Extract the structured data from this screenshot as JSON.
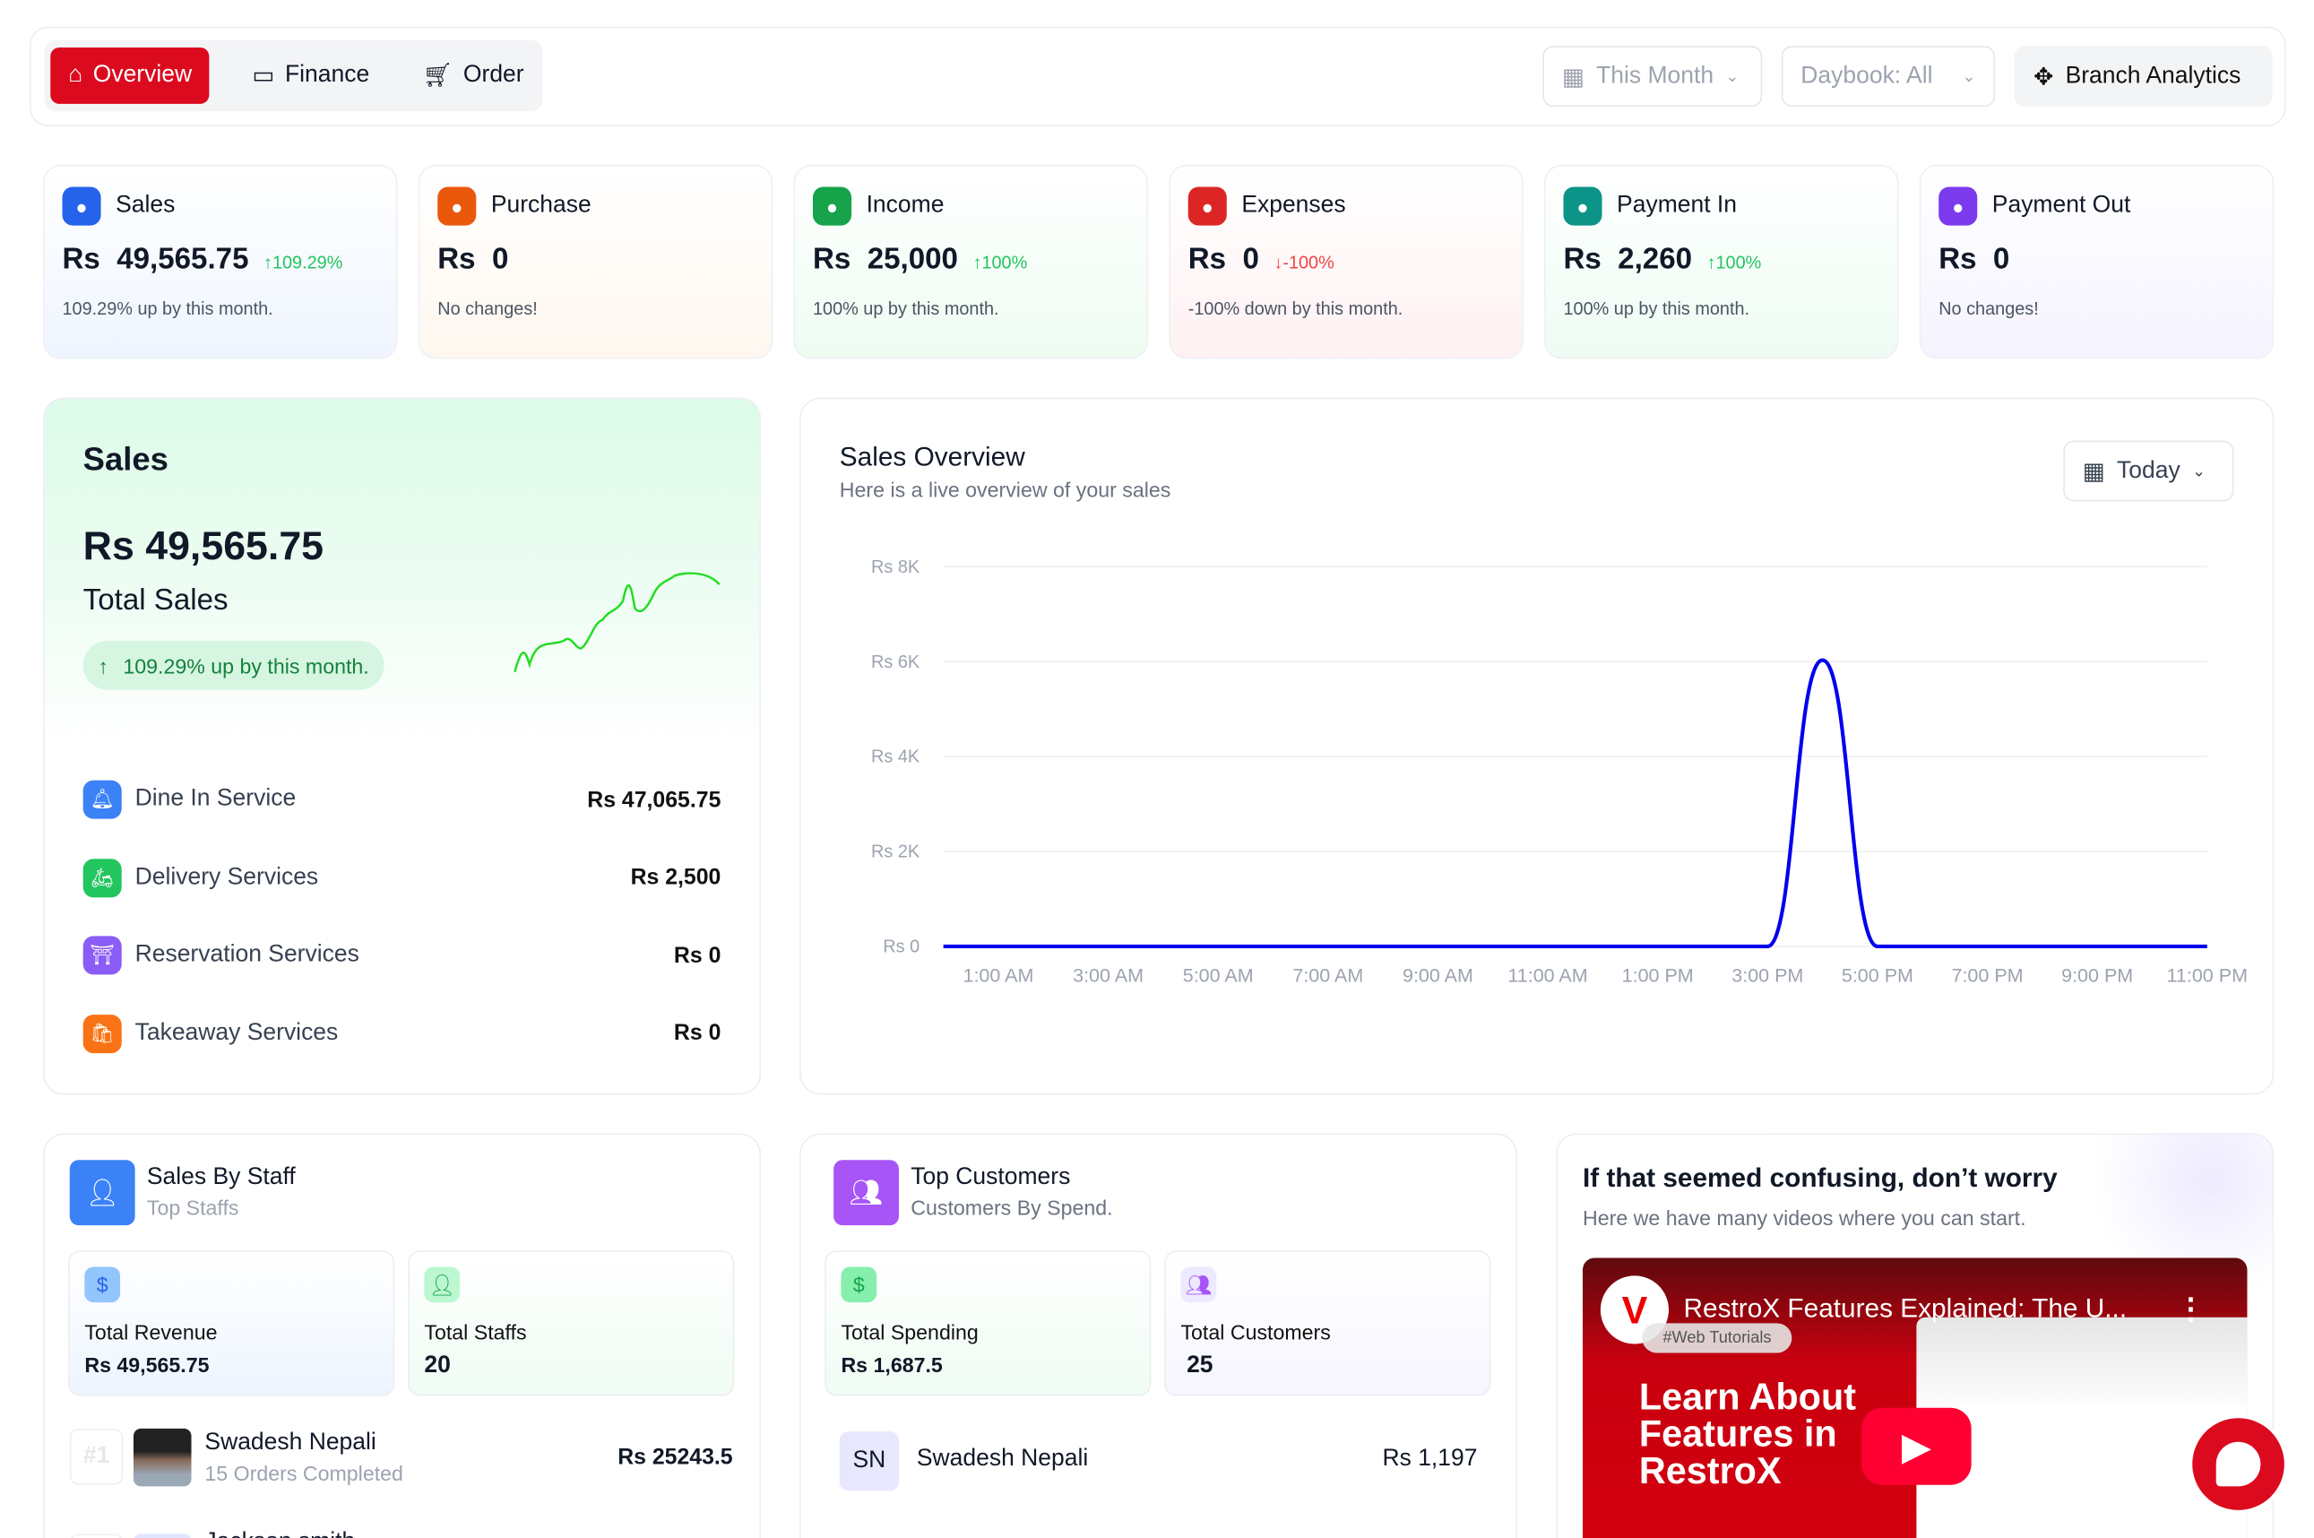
{
  "nav": {
    "tabs": [
      {
        "label": "Overview",
        "icon": "home-icon",
        "active": true
      },
      {
        "label": "Finance",
        "icon": "wallet-icon"
      },
      {
        "label": "Order",
        "icon": "cart-icon"
      }
    ],
    "period": "This Month",
    "daybook": "Daybook: All",
    "branch_analytics": "Branch Analytics"
  },
  "stats": [
    {
      "label": "Sales",
      "value": "Rs  49,565.75",
      "pct": "109.29%",
      "dir": "up",
      "note": "109.29% up by this month.",
      "color": "#2563eb",
      "bg": "#eff5ff"
    },
    {
      "label": "Purchase",
      "value": "Rs  0",
      "pct": "",
      "dir": "",
      "note": "No changes!",
      "color": "#ea580c",
      "bg": "#fff7ef"
    },
    {
      "label": "Income",
      "value": "Rs  25,000",
      "pct": "100%",
      "dir": "up",
      "note": "100% up by this month.",
      "color": "#16a34a",
      "bg": "#eefcf2"
    },
    {
      "label": "Expenses",
      "value": "Rs  0",
      "pct": "-100%",
      "dir": "down",
      "note": "-100% down by this month.",
      "color": "#dc2626",
      "bg": "#fff1f2"
    },
    {
      "label": "Payment In",
      "value": "Rs  2,260",
      "pct": "100%",
      "dir": "up",
      "note": "100% up by this month.",
      "color": "#0d9488",
      "bg": "#eefcf4"
    },
    {
      "label": "Payment Out",
      "value": "Rs  0",
      "pct": "",
      "dir": "",
      "note": "No changes!",
      "color": "#7c3aed",
      "bg": "#f5f3ff"
    }
  ],
  "sales": {
    "title": "Sales",
    "total": "Rs 49,565.75",
    "subtitle": "Total Sales",
    "badge": "109.29% up by this month.",
    "services": [
      {
        "label": "Dine In Service",
        "amount": "Rs 47,065.75",
        "color": "#3b82f6",
        "icon": "bell-icon"
      },
      {
        "label": "Delivery Services",
        "amount": "Rs 2,500",
        "color": "#22c55e",
        "icon": "scooter-icon"
      },
      {
        "label": "Reservation Services",
        "amount": "Rs 0",
        "color": "#8b5cf6",
        "icon": "table-icon"
      },
      {
        "label": "Takeaway Services",
        "amount": "Rs 0",
        "color": "#f97316",
        "icon": "bag-icon"
      }
    ]
  },
  "overview": {
    "title": "Sales Overview",
    "subtitle": "Here is a live overview of your sales",
    "range": "Today"
  },
  "chart_data": {
    "type": "line",
    "y_ticks": [
      "Rs 8K",
      "Rs 6K",
      "Rs 4K",
      "Rs 2K",
      "Rs 0"
    ],
    "ylim": [
      0,
      8000
    ],
    "x_ticks": [
      "1:00 AM",
      "3:00 AM",
      "5:00 AM",
      "7:00 AM",
      "9:00 AM",
      "11:00 AM",
      "1:00 PM",
      "3:00 PM",
      "5:00 PM",
      "7:00 PM",
      "9:00 PM",
      "11:00 PM"
    ],
    "hours": [
      0,
      1,
      2,
      3,
      4,
      5,
      6,
      7,
      8,
      9,
      10,
      11,
      12,
      13,
      14,
      15,
      16,
      17,
      18,
      19,
      20,
      21,
      22,
      23
    ],
    "values": [
      0,
      0,
      0,
      0,
      0,
      0,
      0,
      0,
      0,
      0,
      0,
      0,
      0,
      0,
      0,
      0,
      6030,
      0,
      0,
      0,
      0,
      0,
      0,
      0
    ],
    "color": "#0000ee",
    "grid": true
  },
  "staff": {
    "title": "Sales By Staff",
    "subtitle": "Top Staffs",
    "revenue_label": "Total Revenue",
    "revenue": "Rs 49,565.75",
    "staffs_label": "Total Staffs",
    "staffs": "20",
    "list": [
      {
        "rank": "#1",
        "name": "Swadesh Nepali",
        "orders": "15 Orders Completed",
        "amount": "Rs 25243.5"
      },
      {
        "name": "Jackson smith"
      }
    ]
  },
  "customers": {
    "title": "Top Customers",
    "subtitle": "Customers By Spend.",
    "spending_label": "Total Spending",
    "spending": "Rs 1,687.5",
    "count_label": "Total Customers",
    "count": "25",
    "list": [
      {
        "initials": "SN",
        "name": "Swadesh Nepali",
        "amount": "Rs 1,197"
      }
    ]
  },
  "video": {
    "title": "If that seemed confusing, don’t worry",
    "subtitle": "Here we have many videos where you can start.",
    "video_title": "RestroX Features Explained: The U...",
    "channel_tag": "#Web Tutorials",
    "thumb_text": "Learn About Features in RestroX"
  }
}
